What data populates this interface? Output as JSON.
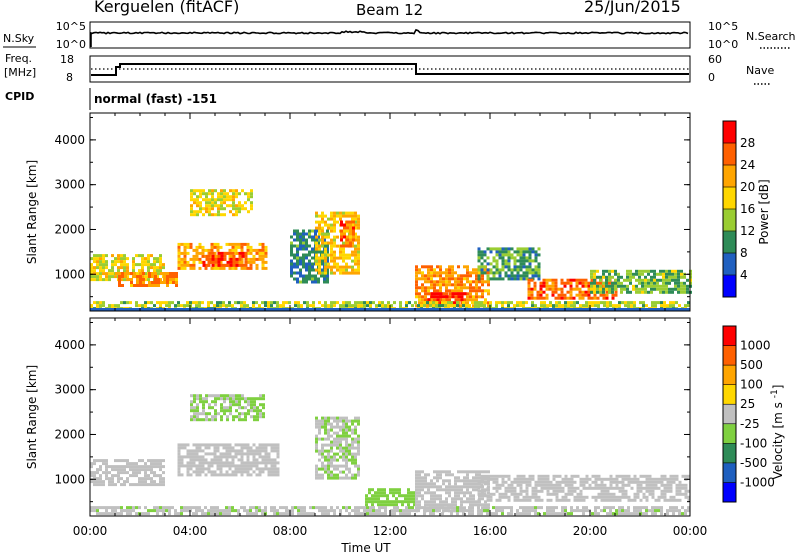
{
  "header": {
    "station": "Kerguelen (fitACF)",
    "beam": "Beam 12",
    "date": "25/Jun/2015"
  },
  "aux": {
    "nsky_label": "N.Sky",
    "nsky_ticks": [
      "10^5",
      "10^0"
    ],
    "nsearch_label": "N.Search",
    "nsearch_ticks": [
      "10^5",
      "10^0"
    ],
    "freq_label": "Freq.",
    "freq_unit": "[MHz]",
    "freq_ticks": [
      "18",
      "8"
    ],
    "nave_label": "Nave",
    "nave_ticks": [
      "60",
      "0"
    ],
    "cpid_label": "CPID",
    "cpid_text": "normal (fast) -151"
  },
  "x_axis": {
    "title": "Time UT",
    "ticks": [
      "00:00",
      "04:00",
      "08:00",
      "12:00",
      "16:00",
      "20:00",
      "00:00"
    ]
  },
  "colors": {
    "power_scale": [
      "#0000ff",
      "#2060c0",
      "#2e8b57",
      "#9acd32",
      "#ffd700",
      "#ffa500",
      "#ff6000",
      "#ff0000"
    ],
    "velocity_scale": [
      "#0000ff",
      "#1e5fbf",
      "#2e8b57",
      "#7fd040",
      "#c0c0c0",
      "#ffd700",
      "#ffa500",
      "#ff6000",
      "#ff0000"
    ]
  },
  "chart_data": [
    {
      "type": "heatmap",
      "title": "",
      "ylabel": "Slant Range [km]",
      "xlabel": "",
      "x_range_hours": [
        0,
        24
      ],
      "ylim": [
        180,
        4600
      ],
      "y_ticks": [
        1000,
        2000,
        3000,
        4000
      ],
      "colorbar": {
        "title": "Power [dB]",
        "ticks": [
          "28",
          "24",
          "20",
          "16",
          "12",
          "8",
          "4"
        ],
        "range": [
          0,
          30
        ]
      },
      "echo_regions": [
        {
          "t": [
            0.0,
            3.0
          ],
          "range": [
            900,
            1450
          ],
          "level": 16
        },
        {
          "t": [
            1.0,
            3.5
          ],
          "range": [
            750,
            1050
          ],
          "level": 22
        },
        {
          "t": [
            3.5,
            7.0
          ],
          "range": [
            1100,
            1700
          ],
          "level": 20
        },
        {
          "t": [
            4.5,
            6.2
          ],
          "range": [
            1200,
            1500
          ],
          "level": 26
        },
        {
          "t": [
            4.0,
            6.5
          ],
          "range": [
            2300,
            2900
          ],
          "level": 16
        },
        {
          "t": [
            8.0,
            9.5
          ],
          "range": [
            800,
            2000
          ],
          "level": 8
        },
        {
          "t": [
            9.0,
            10.8
          ],
          "range": [
            1000,
            2400
          ],
          "level": 18
        },
        {
          "t": [
            10.0,
            10.6
          ],
          "range": [
            1600,
            2200
          ],
          "level": 24
        },
        {
          "t": [
            13.0,
            16.0
          ],
          "range": [
            300,
            1200
          ],
          "level": 22
        },
        {
          "t": [
            13.5,
            15.0
          ],
          "range": [
            350,
            600
          ],
          "level": 28
        },
        {
          "t": [
            15.5,
            18.0
          ],
          "range": [
            900,
            1600
          ],
          "level": 10
        },
        {
          "t": [
            17.5,
            21.0
          ],
          "range": [
            450,
            900
          ],
          "level": 24
        },
        {
          "t": [
            20.0,
            24.0
          ],
          "range": [
            600,
            1100
          ],
          "level": 12
        },
        {
          "t": [
            0.0,
            24.0
          ],
          "range": [
            200,
            400
          ],
          "level": 14
        }
      ]
    },
    {
      "type": "heatmap",
      "title": "",
      "ylabel": "Slant Range [km]",
      "xlabel": "Time UT",
      "x_range_hours": [
        0,
        24
      ],
      "ylim": [
        180,
        4600
      ],
      "y_ticks": [
        1000,
        2000,
        3000,
        4000
      ],
      "colorbar": {
        "title": "Velocity [m s^-1]",
        "ticks": [
          "1000",
          "500",
          "100",
          "25",
          "-25",
          "-100",
          "-500",
          "-1000"
        ],
        "range": [
          -1200,
          1200
        ]
      },
      "echo_regions": [
        {
          "t": [
            0.0,
            3.0
          ],
          "range": [
            900,
            1450
          ],
          "level": 0
        },
        {
          "t": [
            3.5,
            7.5
          ],
          "range": [
            1100,
            1800
          ],
          "level": 0
        },
        {
          "t": [
            4.0,
            7.0
          ],
          "range": [
            2300,
            2900
          ],
          "level": -150
        },
        {
          "t": [
            9.0,
            10.8
          ],
          "range": [
            1000,
            2400
          ],
          "level": -120
        },
        {
          "t": [
            11.0,
            13.0
          ],
          "range": [
            400,
            800
          ],
          "level": -300
        },
        {
          "t": [
            13.0,
            16.0
          ],
          "range": [
            300,
            1200
          ],
          "level": 0
        },
        {
          "t": [
            15.5,
            24.0
          ],
          "range": [
            500,
            1100
          ],
          "level": 0
        },
        {
          "t": [
            0.0,
            24.0
          ],
          "range": [
            200,
            400
          ],
          "level": -80
        }
      ]
    }
  ]
}
